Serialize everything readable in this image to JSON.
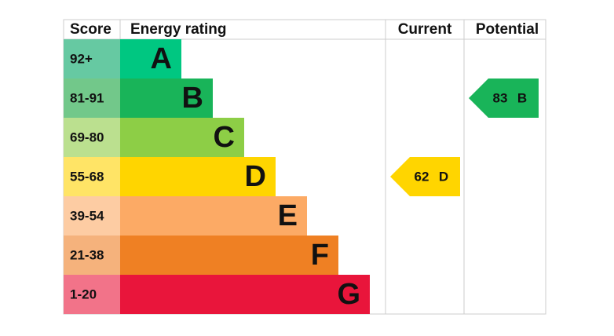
{
  "header": {
    "score": "Score",
    "rating": "Energy rating",
    "current": "Current",
    "potential": "Potential"
  },
  "bands": [
    {
      "score": "92+",
      "letter": "A",
      "color": "#00c781",
      "score_color": "#66c9a2"
    },
    {
      "score": "81-91",
      "letter": "B",
      "color": "#19b459",
      "score_color": "#72c88a"
    },
    {
      "score": "69-80",
      "letter": "C",
      "color": "#8dce46",
      "score_color": "#bbe08f"
    },
    {
      "score": "55-68",
      "letter": "D",
      "color": "#ffd500",
      "score_color": "#ffe466"
    },
    {
      "score": "39-54",
      "letter": "E",
      "color": "#fcaa65",
      "score_color": "#fdcca3"
    },
    {
      "score": "21-38",
      "letter": "F",
      "color": "#ef8023",
      "score_color": "#f5b27c"
    },
    {
      "score": "1-20",
      "letter": "G",
      "color": "#e9153b",
      "score_color": "#f27389"
    }
  ],
  "current": {
    "value": 62,
    "letter": "D"
  },
  "potential": {
    "value": 83,
    "letter": "B"
  }
}
